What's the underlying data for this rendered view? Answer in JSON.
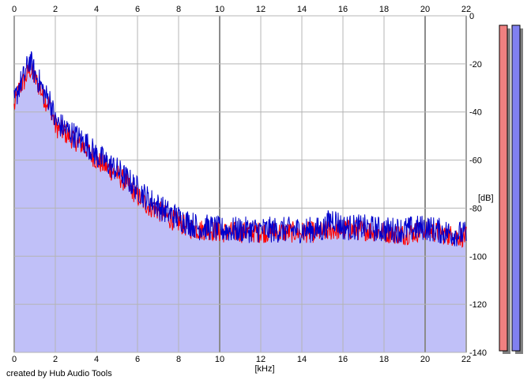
{
  "footer": {
    "credit": "created by Hub Audio Tools"
  },
  "colors": {
    "plot_background": "#ffffff",
    "grid": "#b4b4b4",
    "grid_major": "#8c8c8c",
    "fill": "#c0c0f8",
    "channel_left": "#ff0000",
    "channel_right": "#0000cc",
    "meter_left": "#f08080",
    "meter_right": "#8080f0"
  },
  "chart_data": {
    "type": "line",
    "title": "",
    "xlabel": "[kHz]",
    "ylabel": "[dB]",
    "xlim": [
      0,
      22
    ],
    "ylim": [
      -140,
      0
    ],
    "x_ticks": [
      "0",
      "2",
      "4",
      "6",
      "8",
      "10",
      "12",
      "14",
      "16",
      "18",
      "20",
      "22"
    ],
    "y_ticks": [
      "0",
      "-20",
      "-40",
      "-60",
      "-80",
      "-100",
      "-120",
      "-140"
    ],
    "grid": true,
    "major_x_gridlines": [
      0,
      10,
      20,
      22
    ],
    "area_fill_under": "right",
    "x": [
      0,
      0.25,
      0.5,
      0.75,
      1,
      1.25,
      1.5,
      1.75,
      2,
      2.5,
      3,
      3.5,
      4,
      4.5,
      5,
      5.5,
      6,
      6.5,
      7,
      7.5,
      8,
      8.5,
      9,
      9.5,
      10,
      11,
      12,
      13,
      14,
      15,
      15.5,
      16,
      17,
      18,
      19,
      20,
      21,
      22
    ],
    "series": [
      {
        "values": [
          -38,
          -30,
          -27,
          -22,
          -26,
          -30,
          -35,
          -37,
          -46,
          -49,
          -52,
          -55,
          -60,
          -63,
          -66,
          -70,
          -75,
          -79,
          -81,
          -84,
          -86,
          -88,
          -89,
          -89,
          -90,
          -90,
          -90,
          -90,
          -90,
          -90,
          -89,
          -89,
          -89,
          -90,
          -91,
          -89,
          -91,
          -92
        ]
      },
      {
        "values": [
          -36,
          -29,
          -25,
          -18,
          -24,
          -28,
          -33,
          -35,
          -44,
          -47,
          -50,
          -53,
          -58,
          -61,
          -64,
          -68,
          -72,
          -76,
          -79,
          -82,
          -84,
          -86,
          -88,
          -88,
          -89,
          -89,
          -89,
          -89,
          -89,
          -89,
          -84,
          -88,
          -88,
          -89,
          -89,
          -88,
          -90,
          -91
        ]
      }
    ],
    "level_meters": [
      {
        "level_db": 0
      },
      {
        "level_db": 0
      }
    ]
  }
}
